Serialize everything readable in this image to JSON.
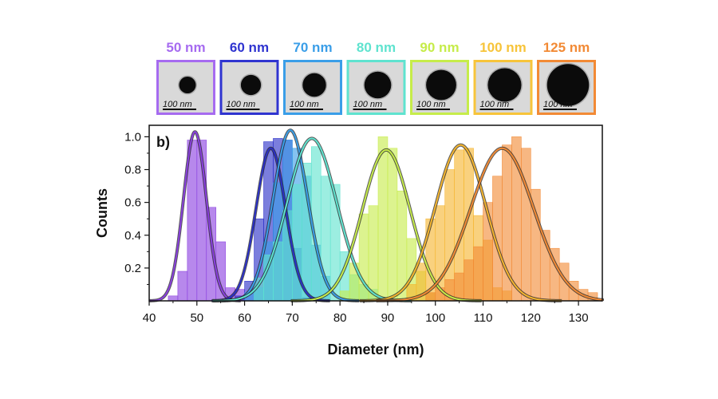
{
  "tem_images": {
    "scale_bar_label": "100 nm",
    "items": [
      {
        "label": "50 nm",
        "color": "#a66bf0",
        "particle_size": 50
      },
      {
        "label": "60 nm",
        "color": "#2f34d0",
        "particle_size": 60
      },
      {
        "label": "70 nm",
        "color": "#3a9ee8",
        "particle_size": 70
      },
      {
        "label": "80 nm",
        "color": "#5fe3cf",
        "particle_size": 80
      },
      {
        "label": "90 nm",
        "color": "#c6ec4a",
        "particle_size": 90
      },
      {
        "label": "100 nm",
        "color": "#f7c43a",
        "particle_size": 100
      },
      {
        "label": "125 nm",
        "color": "#f28a35",
        "particle_size": 125
      }
    ]
  },
  "chart_data": {
    "type": "bar",
    "panel_label": "b)",
    "xlabel": "Diameter (nm)",
    "ylabel": "Counts",
    "xlim": [
      40,
      135
    ],
    "ylim": [
      0,
      1.07
    ],
    "xticks": [
      40,
      50,
      60,
      70,
      80,
      90,
      100,
      110,
      120,
      130
    ],
    "yticks": [
      0.2,
      0.4,
      0.6,
      0.8,
      1.0
    ],
    "ytick_labels": [
      "0.2",
      "0.4",
      "0.6",
      "0.8",
      "1.0"
    ],
    "bin_width": 2,
    "series": [
      {
        "label": "50 nm",
        "color": "#8a3fe0",
        "fit_mean": 49.6,
        "fit_sigma": 2.4,
        "fit_peak": 1.03,
        "bins": [
          [
            44,
            0.03
          ],
          [
            46,
            0.18
          ],
          [
            48,
            0.98
          ],
          [
            50,
            0.98
          ],
          [
            52,
            0.57
          ],
          [
            54,
            0.36
          ],
          [
            56,
            0.08
          ],
          [
            58,
            0.07
          ]
        ]
      },
      {
        "label": "60 nm",
        "color": "#2a2fc8",
        "fit_mean": 65.5,
        "fit_sigma": 3.1,
        "fit_peak": 0.93,
        "bins": [
          [
            58,
            0.03
          ],
          [
            60,
            0.12
          ],
          [
            62,
            0.5
          ],
          [
            64,
            0.97
          ],
          [
            66,
            0.99
          ],
          [
            68,
            0.98
          ],
          [
            70,
            0.32
          ],
          [
            72,
            0.02
          ]
        ]
      },
      {
        "label": "70 nm",
        "color": "#3a9ee8",
        "fit_mean": 69.6,
        "fit_sigma": 3.6,
        "fit_peak": 1.04,
        "bins": [
          [
            60,
            0.05
          ],
          [
            62,
            0.08
          ],
          [
            64,
            0.36
          ],
          [
            66,
            0.72
          ],
          [
            68,
            0.98
          ],
          [
            70,
            0.93
          ],
          [
            72,
            0.76
          ],
          [
            74,
            0.34
          ],
          [
            76,
            0.15
          ]
        ]
      },
      {
        "label": "80 nm",
        "color": "#5fe3cf",
        "fit_mean": 74.1,
        "fit_sigma": 5.2,
        "fit_peak": 0.99,
        "bins": [
          [
            62,
            0.14
          ],
          [
            64,
            0.28
          ],
          [
            66,
            0.36
          ],
          [
            68,
            0.55
          ],
          [
            70,
            0.71
          ],
          [
            72,
            0.84
          ],
          [
            74,
            0.94
          ],
          [
            76,
            0.76
          ],
          [
            78,
            0.71
          ],
          [
            80,
            0.3
          ],
          [
            82,
            0.16
          ],
          [
            84,
            0.1
          ],
          [
            86,
            0.07
          ]
        ]
      },
      {
        "label": "90 nm",
        "color": "#c6ec4a",
        "fit_mean": 89.7,
        "fit_sigma": 5.0,
        "fit_peak": 0.92,
        "bins": [
          [
            80,
            0.06
          ],
          [
            82,
            0.23
          ],
          [
            84,
            0.53
          ],
          [
            86,
            0.58
          ],
          [
            88,
            1.0
          ],
          [
            90,
            0.93
          ],
          [
            92,
            0.67
          ],
          [
            94,
            0.38
          ],
          [
            96,
            0.18
          ],
          [
            98,
            0.05
          ]
        ]
      },
      {
        "label": "100 nm",
        "color": "#f5b52e",
        "fit_mean": 105.3,
        "fit_sigma": 5.3,
        "fit_peak": 0.95,
        "bins": [
          [
            94,
            0.1
          ],
          [
            96,
            0.23
          ],
          [
            98,
            0.5
          ],
          [
            100,
            0.58
          ],
          [
            102,
            0.8
          ],
          [
            104,
            0.92
          ],
          [
            106,
            0.93
          ],
          [
            108,
            0.52
          ],
          [
            110,
            0.37
          ],
          [
            112,
            0.08
          ],
          [
            114,
            0.06
          ]
        ]
      },
      {
        "label": "125 nm",
        "color": "#f28a35",
        "fit_mean": 114.0,
        "fit_sigma": 6.6,
        "fit_peak": 0.93,
        "bins": [
          [
            98,
            0.05
          ],
          [
            100,
            0.08
          ],
          [
            102,
            0.13
          ],
          [
            104,
            0.17
          ],
          [
            106,
            0.25
          ],
          [
            108,
            0.33
          ],
          [
            110,
            0.6
          ],
          [
            112,
            0.76
          ],
          [
            114,
            0.95
          ],
          [
            116,
            1.0
          ],
          [
            118,
            0.93
          ],
          [
            120,
            0.68
          ],
          [
            122,
            0.43
          ],
          [
            124,
            0.32
          ],
          [
            126,
            0.23
          ],
          [
            128,
            0.12
          ],
          [
            130,
            0.07
          ],
          [
            132,
            0.05
          ]
        ]
      }
    ]
  }
}
